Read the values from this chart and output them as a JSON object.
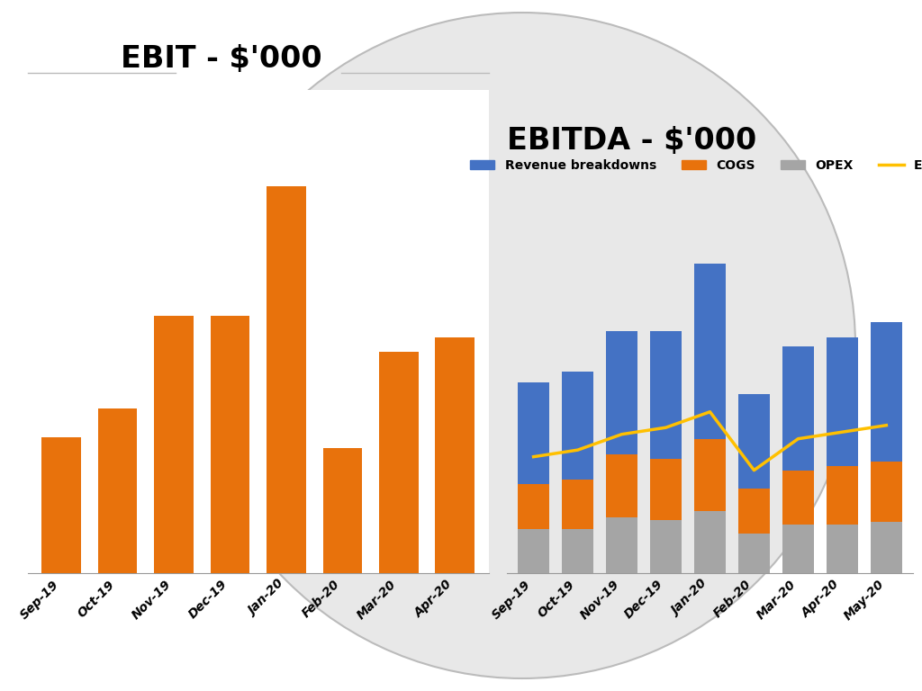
{
  "ebit_labels": [
    "Sep-19",
    "Oct-19",
    "Nov-19",
    "Dec-19",
    "Jan-20",
    "Feb-20",
    "Mar-20",
    "Apr-20"
  ],
  "ebit_values": [
    38,
    46,
    72,
    72,
    108,
    35,
    62,
    66
  ],
  "ebit_color": "#E8720C",
  "ebit_title": "EBIT - $'000",
  "ebitda_labels": [
    "Sep-19",
    "Oct-19",
    "Nov-19",
    "Dec-19",
    "Jan-20",
    "Feb-20",
    "Mar-20",
    "Apr-20",
    "May-20"
  ],
  "ebitda_cogs": [
    20,
    22,
    28,
    27,
    32,
    20,
    24,
    26,
    27
  ],
  "ebitda_opex": [
    20,
    20,
    25,
    24,
    28,
    18,
    22,
    22,
    23
  ],
  "ebitda_blue": [
    45,
    48,
    55,
    57,
    78,
    42,
    55,
    57,
    62
  ],
  "ebitda_line": [
    52,
    55,
    62,
    65,
    72,
    46,
    60,
    63,
    66
  ],
  "ebitda_color_blue": "#4472C4",
  "ebitda_color_cogs": "#E8720C",
  "ebitda_color_opex": "#A5A5A5",
  "ebitda_color_line": "#FFC000",
  "ebitda_title": "EBITDA - $'000",
  "bg_color": "#FFFFFF",
  "grid_color": "#D0D0D0",
  "circle_color": "#E8E8E8",
  "circle_edge": "#BBBBBB",
  "title_fontsize": 24,
  "tick_fontsize": 10,
  "legend_fontsize": 10
}
